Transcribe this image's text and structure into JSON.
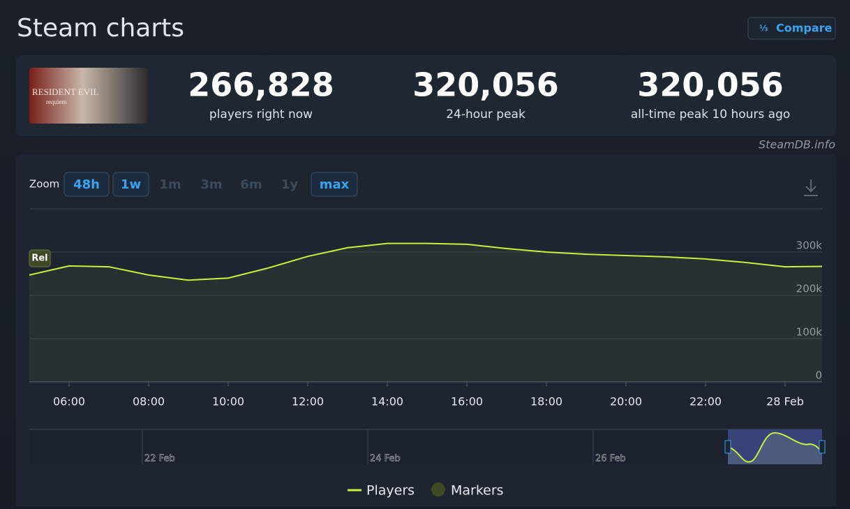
{
  "header": {
    "title": "Steam charts",
    "compare": "Compare"
  },
  "game": {
    "logo": "RESIDENT EVIL",
    "subtitle": "requiem"
  },
  "stats": [
    {
      "value": "266,828",
      "label": "players right now"
    },
    {
      "value": "320,056",
      "label": "24-hour peak"
    },
    {
      "value": "320,056",
      "label": "all-time peak 10 hours ago"
    }
  ],
  "credit": "SteamDB.info",
  "zoom": {
    "label": "Zoom",
    "options": [
      "48h",
      "1w",
      "1m",
      "3m",
      "6m",
      "1y",
      "max"
    ],
    "enabled": [
      true,
      true,
      false,
      false,
      false,
      false,
      true
    ]
  },
  "chart_data": {
    "type": "line",
    "categories": [
      null,
      "06:00",
      null,
      "08:00",
      null,
      "10:00",
      null,
      "12:00",
      null,
      "14:00",
      null,
      "16:00",
      null,
      "18:00",
      null,
      "20:00",
      null,
      "22:00",
      null,
      "28 Feb",
      null
    ],
    "series": [
      {
        "name": "Players",
        "color": "#c8f03c",
        "values": [
          247000,
          268000,
          266000,
          247000,
          235000,
          240000,
          263000,
          290000,
          310000,
          320000,
          320000,
          318000,
          308000,
          300000,
          295000,
          292000,
          289000,
          284000,
          276000,
          266000,
          267000
        ]
      }
    ],
    "ylim": [
      0,
      400000
    ],
    "yticks": [
      0,
      {
        "value": 100000,
        "label": "100k"
      },
      {
        "value": 200000,
        "label": "200k"
      },
      {
        "value": 300000,
        "label": "300k"
      }
    ],
    "grid": true,
    "annotations": [
      {
        "label": "Rel"
      }
    ],
    "markers": {
      "name": "Markers",
      "color": "#3e4a25"
    }
  },
  "navigator": {
    "labels": [
      "22 Feb",
      "24 Feb",
      "26 Feb"
    ]
  }
}
